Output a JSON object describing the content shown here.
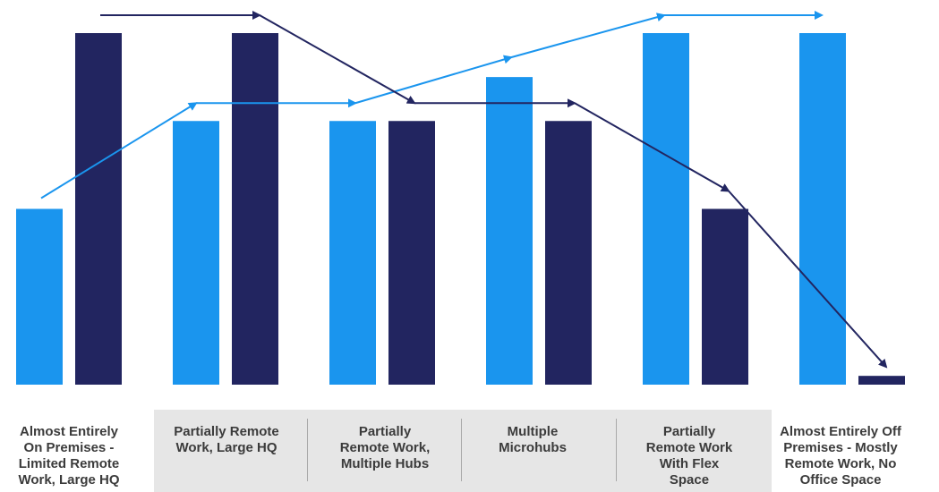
{
  "chart_data": {
    "type": "bar",
    "categories": [
      "Almost Entirely\nOn Premises -\nLimited Remote\nWork, Large HQ",
      "Partially Remote\nWork, Large HQ",
      "Partially\nRemote Work,\nMultiple Hubs",
      "Multiple\nMicrohubs",
      "Partially\nRemote Work\nWith Flex\nSpace",
      "Almost Entirely Off\nPremises - Mostly\nRemote Work, No\nOffice Space"
    ],
    "series": [
      {
        "values": [
          2,
          3,
          3,
          3.5,
          4,
          4
        ],
        "color": "#1a95ee"
      },
      {
        "values": [
          4,
          4,
          3,
          3,
          2,
          0.1
        ],
        "color": "#222560"
      }
    ],
    "title": "",
    "xlabel": "",
    "ylabel": "",
    "ylim": [
      0,
      4
    ],
    "grid": false,
    "legend": "none",
    "trend_arrows": true
  }
}
